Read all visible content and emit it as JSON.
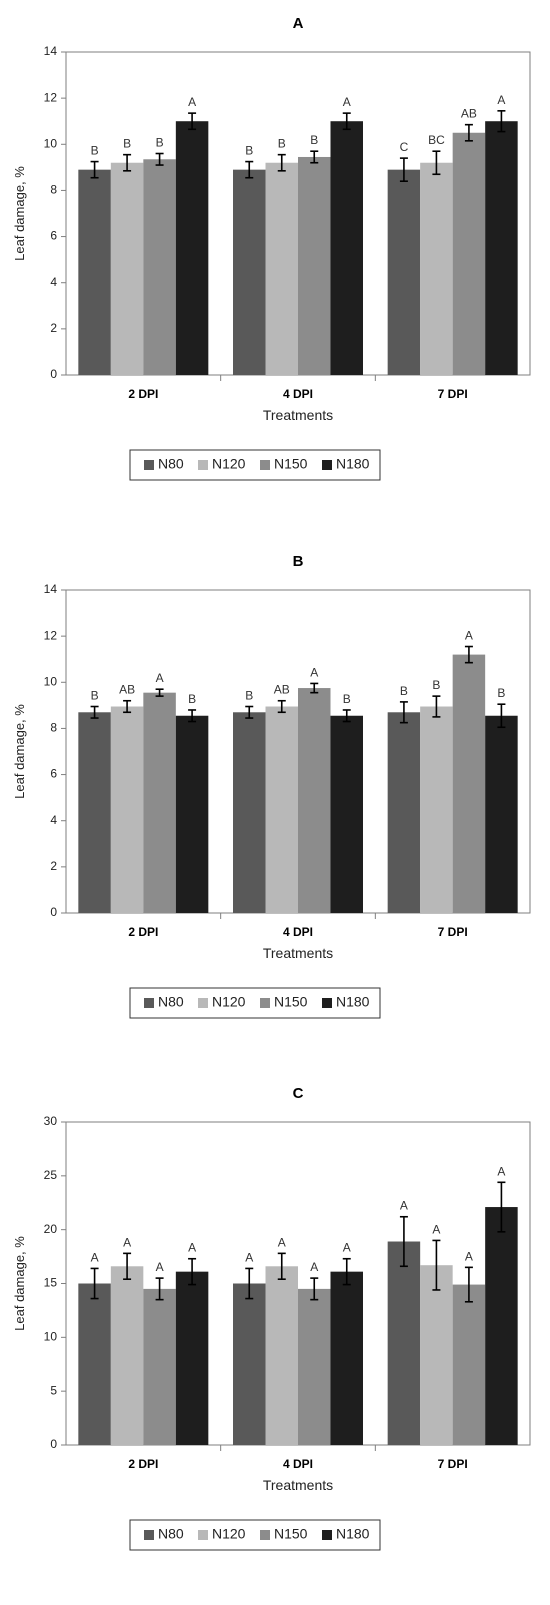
{
  "colors": {
    "N80": "#595959",
    "N120": "#b8b8b8",
    "N150": "#8c8c8c",
    "N180": "#1e1e1e",
    "axis": "#7f7f7f",
    "errorbar": "#000000"
  },
  "chart_data": [
    {
      "type": "bar",
      "title": "A",
      "xlabel": "Treatments",
      "ylabel": "Leaf damage, %",
      "ylim": [
        0,
        14
      ],
      "yticks": [
        0,
        2,
        4,
        6,
        8,
        10,
        12,
        14
      ],
      "grid": false,
      "legend_position": "bottom",
      "categories": [
        "2 DPI",
        "4 DPI",
        "7 DPI"
      ],
      "series": [
        {
          "name": "N80",
          "values": [
            8.9,
            8.9,
            8.9
          ],
          "errors": [
            0.35,
            0.35,
            0.5
          ],
          "labels": [
            "B",
            "B",
            "C"
          ]
        },
        {
          "name": "N120",
          "values": [
            9.2,
            9.2,
            9.2
          ],
          "errors": [
            0.35,
            0.35,
            0.5
          ],
          "labels": [
            "B",
            "B",
            "BC"
          ]
        },
        {
          "name": "N150",
          "values": [
            9.35,
            9.45,
            10.5
          ],
          "errors": [
            0.25,
            0.25,
            0.35
          ],
          "labels": [
            "B",
            "B",
            "AB"
          ]
        },
        {
          "name": "N180",
          "values": [
            11.0,
            11.0,
            11.0
          ],
          "errors": [
            0.35,
            0.35,
            0.45
          ],
          "labels": [
            "A",
            "A",
            "A"
          ]
        }
      ]
    },
    {
      "type": "bar",
      "title": "B",
      "xlabel": "Treatments",
      "ylabel": "Leaf damage, %",
      "ylim": [
        0,
        14
      ],
      "yticks": [
        0,
        2,
        4,
        6,
        8,
        10,
        12,
        14
      ],
      "grid": false,
      "legend_position": "bottom",
      "categories": [
        "2 DPI",
        "4 DPI",
        "7 DPI"
      ],
      "series": [
        {
          "name": "N80",
          "values": [
            8.7,
            8.7,
            8.7
          ],
          "errors": [
            0.25,
            0.25,
            0.45
          ],
          "labels": [
            "B",
            "B",
            "B"
          ]
        },
        {
          "name": "N120",
          "values": [
            8.95,
            8.95,
            8.95
          ],
          "errors": [
            0.25,
            0.25,
            0.45
          ],
          "labels": [
            "AB",
            "AB",
            "B"
          ]
        },
        {
          "name": "N150",
          "values": [
            9.55,
            9.75,
            11.2
          ],
          "errors": [
            0.15,
            0.2,
            0.35
          ],
          "labels": [
            "A",
            "A",
            "A"
          ]
        },
        {
          "name": "N180",
          "values": [
            8.55,
            8.55,
            8.55
          ],
          "errors": [
            0.25,
            0.25,
            0.5
          ],
          "labels": [
            "B",
            "B",
            "B"
          ]
        }
      ]
    },
    {
      "type": "bar",
      "title": "C",
      "xlabel": "Treatments",
      "ylabel": "Leaf damage, %",
      "ylim": [
        0,
        30
      ],
      "yticks": [
        0,
        5,
        10,
        15,
        20,
        25,
        30
      ],
      "grid": false,
      "legend_position": "bottom",
      "categories": [
        "2 DPI",
        "4 DPI",
        "7 DPI"
      ],
      "series": [
        {
          "name": "N80",
          "values": [
            15.0,
            15.0,
            18.9
          ],
          "errors": [
            1.4,
            1.4,
            2.3
          ],
          "labels": [
            "A",
            "A",
            "A"
          ]
        },
        {
          "name": "N120",
          "values": [
            16.6,
            16.6,
            16.7
          ],
          "errors": [
            1.2,
            1.2,
            2.3
          ],
          "labels": [
            "A",
            "A",
            "A"
          ]
        },
        {
          "name": "N150",
          "values": [
            14.5,
            14.5,
            14.9
          ],
          "errors": [
            1.0,
            1.0,
            1.6
          ],
          "labels": [
            "A",
            "A",
            "A"
          ]
        },
        {
          "name": "N180",
          "values": [
            16.1,
            16.1,
            22.1
          ],
          "errors": [
            1.2,
            1.2,
            2.3
          ],
          "labels": [
            "A",
            "A",
            "A"
          ]
        }
      ]
    }
  ]
}
